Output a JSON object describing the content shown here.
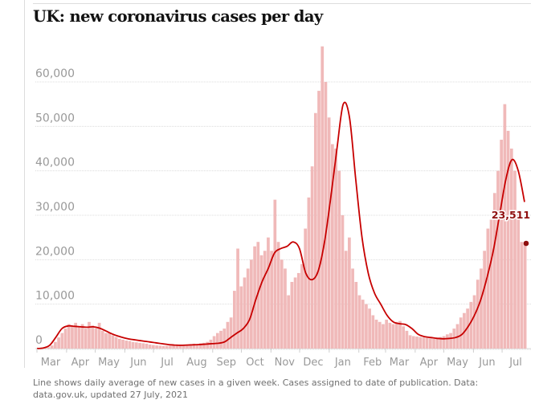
{
  "title": "UK: new coronavirus cases per day",
  "footnote": "Line shows daily average of new cases in a given week. Cases assigned to date of publication. Data: data.gov.uk, updated 27 July, 2021",
  "colors": {
    "bar": "#f0b9b9",
    "line": "#c70000",
    "annotation": "#8f0e0e",
    "grid": "#dcdcdc",
    "tick_text": "#999999"
  },
  "chart_data": {
    "type": "bar",
    "title": "UK: new coronavirus cases per day",
    "xlabel": "",
    "ylabel": "",
    "ylim": [
      0,
      65000
    ],
    "grid": true,
    "y_ticks": [
      0,
      10000,
      20000,
      30000,
      40000,
      50000,
      60000
    ],
    "y_tick_labels": [
      "0",
      "10,000",
      "20,000",
      "30,000",
      "40,000",
      "50,000",
      "60,000"
    ],
    "x_tick_labels": [
      "Mar",
      "Apr",
      "May",
      "Jun",
      "Jul",
      "Aug",
      "Sep",
      "Oct",
      "Nov",
      "Dec",
      "Jan",
      "Feb",
      "Mar",
      "Apr",
      "May",
      "Jun",
      "Jul"
    ],
    "x_range": [
      "2020-03-01",
      "2021-07-27"
    ],
    "annotation": {
      "label": "23,511",
      "value": 23511,
      "date": "2021-07-27"
    },
    "bars_3day_step": [
      0,
      50,
      150,
      300,
      700,
      1500,
      2500,
      3500,
      4500,
      5500,
      5000,
      5800,
      4800,
      5500,
      4500,
      6000,
      5200,
      4600,
      5800,
      4000,
      3500,
      3600,
      3000,
      2600,
      2200,
      2000,
      1800,
      1700,
      1500,
      1400,
      1300,
      1200,
      1100,
      900,
      800,
      700,
      650,
      600,
      600,
      650,
      700,
      800,
      750,
      800,
      900,
      1000,
      1100,
      1000,
      1200,
      1300,
      1500,
      2000,
      2800,
      3500,
      4000,
      4500,
      6000,
      7000,
      13000,
      22500,
      14000,
      16000,
      18000,
      20000,
      23000,
      24000,
      21000,
      22000,
      25000,
      22000,
      33500,
      24000,
      20000,
      18000,
      12000,
      15000,
      16000,
      17000,
      19000,
      27000,
      34000,
      41000,
      53000,
      58000,
      68000,
      60000,
      52000,
      46000,
      45000,
      40000,
      30000,
      22000,
      25000,
      18000,
      15000,
      12000,
      11000,
      10000,
      9000,
      7500,
      6500,
      6000,
      5500,
      6500,
      5800,
      5500,
      6000,
      6200,
      5000,
      4000,
      3000,
      2800,
      2700,
      2600,
      2500,
      2400,
      2300,
      2200,
      2500,
      2600,
      2800,
      3200,
      3500,
      4500,
      5500,
      7000,
      8000,
      9000,
      10500,
      12000,
      15500,
      18000,
      22000,
      27000,
      29000,
      35000,
      40000,
      47000,
      55000,
      49000,
      45000,
      40000,
      31000,
      24000,
      23511
    ],
    "series": [
      {
        "name": "Daily average of new cases in a given week",
        "type": "line",
        "values_weekly": [
          0,
          150,
          700,
          2500,
          4500,
          5100,
          5000,
          4900,
          4800,
          4900,
          4600,
          4000,
          3300,
          2800,
          2400,
          2100,
          1900,
          1700,
          1500,
          1300,
          1100,
          900,
          800,
          750,
          800,
          850,
          900,
          1000,
          1100,
          1200,
          1500,
          2500,
          3500,
          4500,
          6500,
          11000,
          15000,
          18000,
          21500,
          22500,
          23000,
          24000,
          22500,
          17000,
          15500,
          17500,
          24000,
          34000,
          45000,
          55000,
          52000,
          38000,
          25000,
          17000,
          12500,
          10000,
          7500,
          6000,
          5600,
          5400,
          4500,
          3200,
          2700,
          2500,
          2300,
          2200,
          2300,
          2500,
          3200,
          5000,
          7500,
          11000,
          16000,
          22000,
          30000,
          38000,
          42500,
          40000,
          33000
        ]
      }
    ]
  }
}
